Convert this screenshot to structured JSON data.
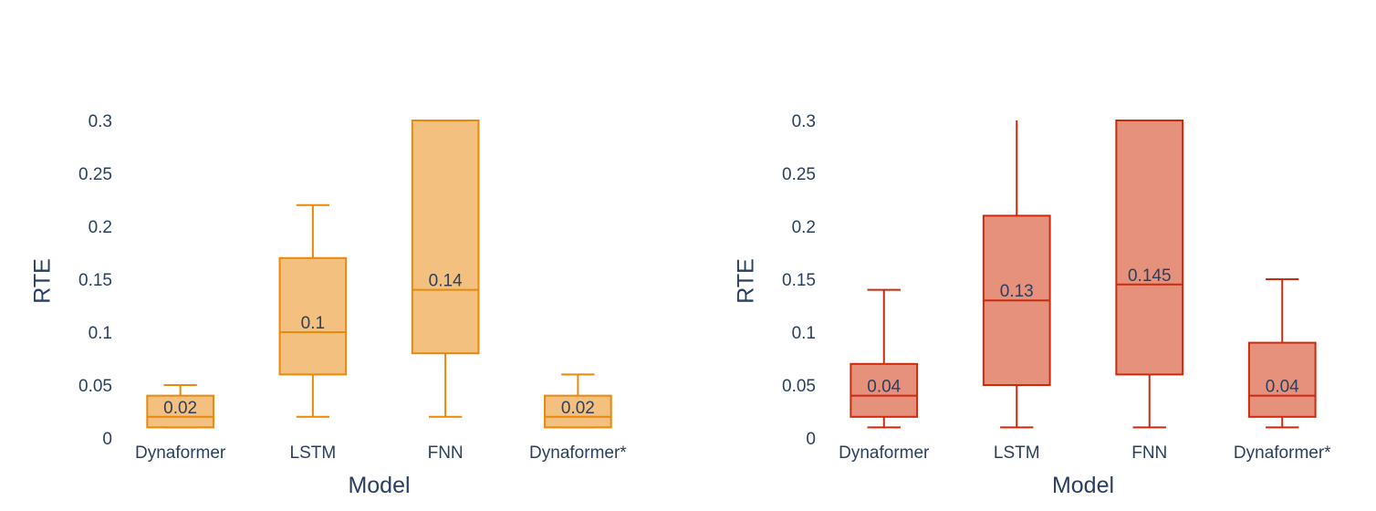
{
  "chart_data": [
    {
      "type": "box",
      "xlabel": "Model",
      "ylabel": "RTE",
      "ylim": [
        0,
        0.3
      ],
      "yticks": [
        "0",
        "0.05",
        "0.1",
        "0.15",
        "0.2",
        "0.25",
        "0.3"
      ],
      "categories": [
        "Dynaformer",
        "LSTM",
        "FNN",
        "Dynaformer*"
      ],
      "fill_color": "#f4c07f",
      "line_color": "#e8890c",
      "boxes": [
        {
          "min": 0.01,
          "q1": 0.01,
          "median": 0.02,
          "q3": 0.04,
          "max": 0.05,
          "label": "0.02"
        },
        {
          "min": 0.02,
          "q1": 0.06,
          "median": 0.1,
          "q3": 0.17,
          "max": 0.22,
          "label": "0.1"
        },
        {
          "min": 0.02,
          "q1": 0.08,
          "median": 0.14,
          "q3": 0.3,
          "max": 0.3,
          "label": "0.14"
        },
        {
          "min": 0.01,
          "q1": 0.01,
          "median": 0.02,
          "q3": 0.04,
          "max": 0.06,
          "label": "0.02"
        }
      ]
    },
    {
      "type": "box",
      "xlabel": "Model",
      "ylabel": "RTE",
      "ylim": [
        0,
        0.3
      ],
      "yticks": [
        "0",
        "0.05",
        "0.1",
        "0.15",
        "0.2",
        "0.25",
        "0.3"
      ],
      "categories": [
        "Dynaformer",
        "LSTM",
        "FNN",
        "Dynaformer*"
      ],
      "fill_color": "#e5917b",
      "line_color": "#cc2a0e",
      "boxes": [
        {
          "min": 0.01,
          "q1": 0.02,
          "median": 0.04,
          "q3": 0.07,
          "max": 0.14,
          "label": "0.04"
        },
        {
          "min": 0.01,
          "q1": 0.05,
          "median": 0.13,
          "q3": 0.21,
          "max": 0.3,
          "label": "0.13"
        },
        {
          "min": 0.01,
          "q1": 0.06,
          "median": 0.145,
          "q3": 0.3,
          "max": 0.3,
          "label": "0.145"
        },
        {
          "min": 0.01,
          "q1": 0.02,
          "median": 0.04,
          "q3": 0.09,
          "max": 0.15,
          "label": "0.04"
        }
      ]
    }
  ]
}
